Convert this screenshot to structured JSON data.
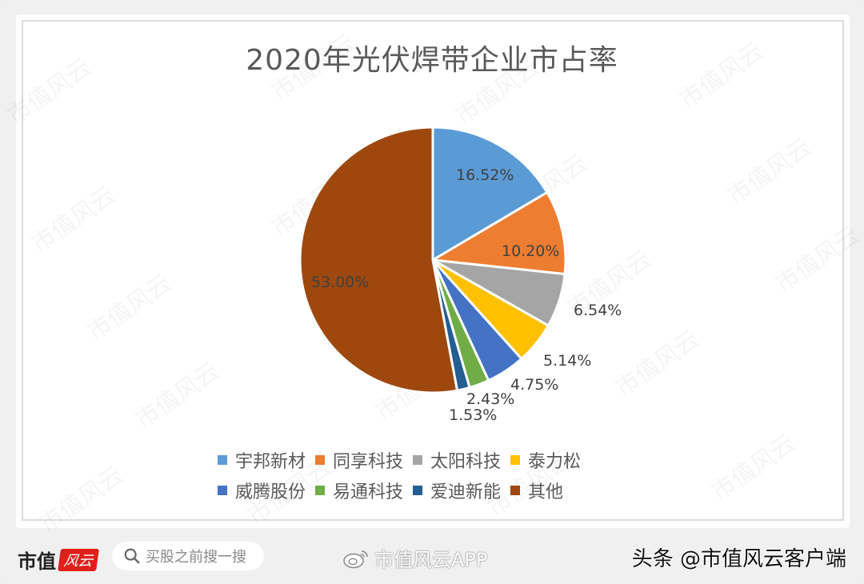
{
  "chart_data": {
    "type": "pie",
    "title": "2020年光伏焊带企业市占率",
    "categories": [
      "宇邦新材",
      "同享科技",
      "太阳科技",
      "泰力松",
      "威腾股份",
      "易通科技",
      "爱迪新能",
      "其他"
    ],
    "values": [
      16.52,
      10.2,
      6.54,
      5.14,
      4.75,
      2.43,
      1.53,
      53.0
    ],
    "value_labels": [
      "16.52%",
      "10.20%",
      "6.54%",
      "5.14%",
      "4.75%",
      "2.43%",
      "1.53%",
      "53.00%"
    ],
    "colors": [
      "#5B9BD5",
      "#ED7D31",
      "#A5A5A5",
      "#FFC000",
      "#4472C4",
      "#70AD47",
      "#255E91",
      "#9E480E"
    ],
    "start_angle": "12 o'clock, clockwise",
    "legend_position": "bottom",
    "unit": "%"
  },
  "legend": {
    "rows": [
      [
        {
          "label": "宇邦新材",
          "color": "#5B9BD5"
        },
        {
          "label": "同享科技",
          "color": "#ED7D31"
        },
        {
          "label": "太阳科技",
          "color": "#A5A5A5"
        },
        {
          "label": "泰力松",
          "color": "#FFC000"
        }
      ],
      [
        {
          "label": "威腾股份",
          "color": "#4472C4"
        },
        {
          "label": "易通科技",
          "color": "#70AD47"
        },
        {
          "label": "爱迪新能",
          "color": "#255E91"
        },
        {
          "label": "其他",
          "color": "#9E480E"
        }
      ]
    ]
  },
  "watermark": {
    "text": "市值风云"
  },
  "footer": {
    "brand_text": "市值",
    "brand_badge": "风云",
    "search_placeholder": "买股之前搜一搜",
    "weibo_text": "市值风云APP",
    "toutiao_text": "头条 @市值风云客户端"
  }
}
